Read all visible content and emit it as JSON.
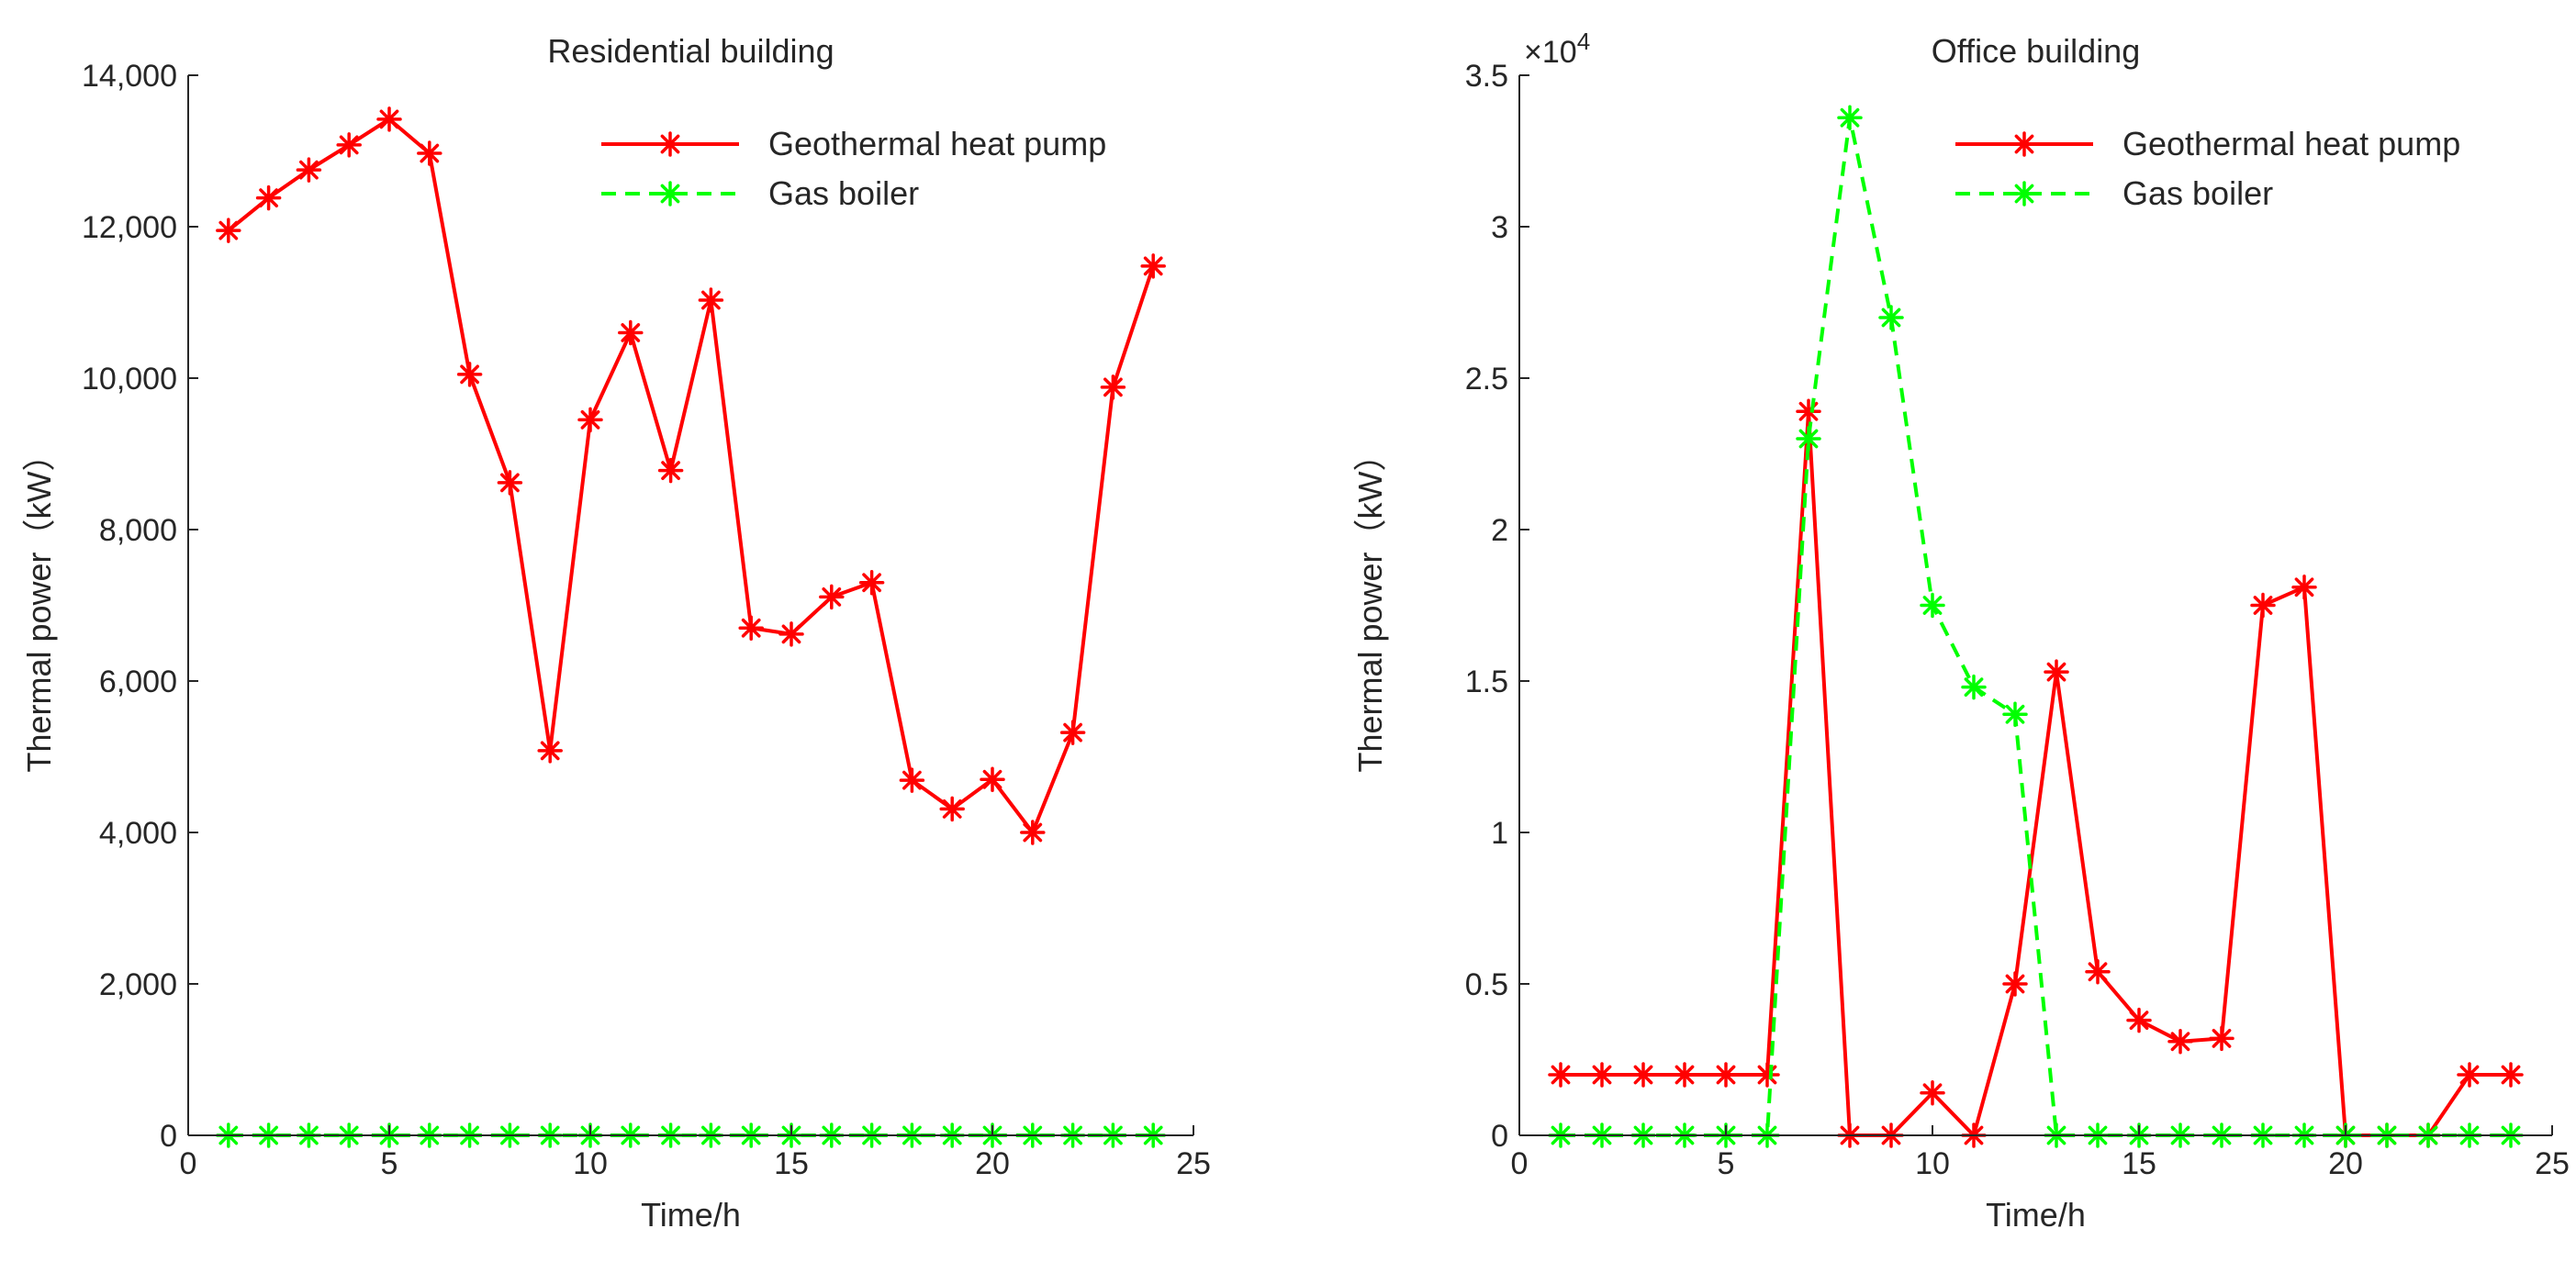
{
  "chart_data": [
    {
      "type": "line",
      "title": "Residential building",
      "xlabel": "Time/h",
      "ylabel": "Thermal power（kW）",
      "xlim": [
        0,
        25
      ],
      "ylim": [
        0,
        14000
      ],
      "xticks": [
        0,
        5,
        10,
        15,
        20,
        25
      ],
      "xtick_labels": [
        "0",
        "5",
        "10",
        "15",
        "20",
        "25"
      ],
      "yticks": [
        0,
        2000,
        4000,
        6000,
        8000,
        10000,
        12000,
        14000
      ],
      "ytick_labels": [
        "0",
        "2,000",
        "4,000",
        "6,000",
        "8,000",
        "10,000",
        "12,000",
        "14,000"
      ],
      "exponent_label": "",
      "legend_position": "top-right",
      "grid": false,
      "x": [
        1,
        2,
        3,
        4,
        5,
        6,
        7,
        8,
        9,
        10,
        11,
        12,
        13,
        14,
        15,
        16,
        17,
        18,
        19,
        20,
        21,
        22,
        23,
        24
      ],
      "series": [
        {
          "name": "Geothermal heat pump",
          "color": "#ff0000",
          "style": "solid",
          "marker": "asterisk",
          "values": [
            11950,
            12380,
            12750,
            13080,
            13420,
            12970,
            10050,
            8620,
            5080,
            9450,
            10600,
            8780,
            11030,
            6700,
            6620,
            7110,
            7300,
            4690,
            4310,
            4700,
            4000,
            5320,
            9880,
            11480
          ]
        },
        {
          "name": "Gas boiler",
          "color": "#00ff00",
          "style": "dashed",
          "marker": "asterisk",
          "values": [
            0,
            0,
            0,
            0,
            0,
            0,
            0,
            0,
            0,
            0,
            0,
            0,
            0,
            0,
            0,
            0,
            0,
            0,
            0,
            0,
            0,
            0,
            0,
            0
          ]
        }
      ]
    },
    {
      "type": "line",
      "title": "Office building",
      "xlabel": "Time/h",
      "ylabel": "Thermal power（kW）",
      "xlim": [
        0,
        25
      ],
      "ylim": [
        0,
        35000
      ],
      "xticks": [
        0,
        5,
        10,
        15,
        20,
        25
      ],
      "xtick_labels": [
        "0",
        "5",
        "10",
        "15",
        "20",
        "25"
      ],
      "yticks": [
        0,
        5000,
        10000,
        15000,
        20000,
        25000,
        30000,
        35000
      ],
      "ytick_labels": [
        "0",
        "0.5",
        "1",
        "1.5",
        "2",
        "2.5",
        "3",
        "3.5"
      ],
      "exponent_label": "×10",
      "exponent_power": "4",
      "legend_position": "top-right",
      "grid": false,
      "x": [
        1,
        2,
        3,
        4,
        5,
        6,
        7,
        8,
        9,
        10,
        11,
        12,
        13,
        14,
        15,
        16,
        17,
        18,
        19,
        20,
        21,
        22,
        23,
        24
      ],
      "series": [
        {
          "name": "Geothermal heat pump",
          "color": "#ff0000",
          "style": "solid",
          "marker": "asterisk",
          "values": [
            2000,
            2000,
            2000,
            2000,
            2000,
            2000,
            23900,
            0,
            0,
            1400,
            0,
            5000,
            15300,
            5400,
            3800,
            3100,
            3200,
            17500,
            18100,
            0,
            0,
            0,
            2000,
            2000
          ]
        },
        {
          "name": "Gas boiler",
          "color": "#00ff00",
          "style": "dashed",
          "marker": "asterisk",
          "values": [
            0,
            0,
            0,
            0,
            0,
            0,
            23000,
            33600,
            27000,
            17500,
            14800,
            13900,
            0,
            0,
            0,
            0,
            0,
            0,
            0,
            0,
            0,
            0,
            0,
            0
          ]
        }
      ]
    }
  ]
}
